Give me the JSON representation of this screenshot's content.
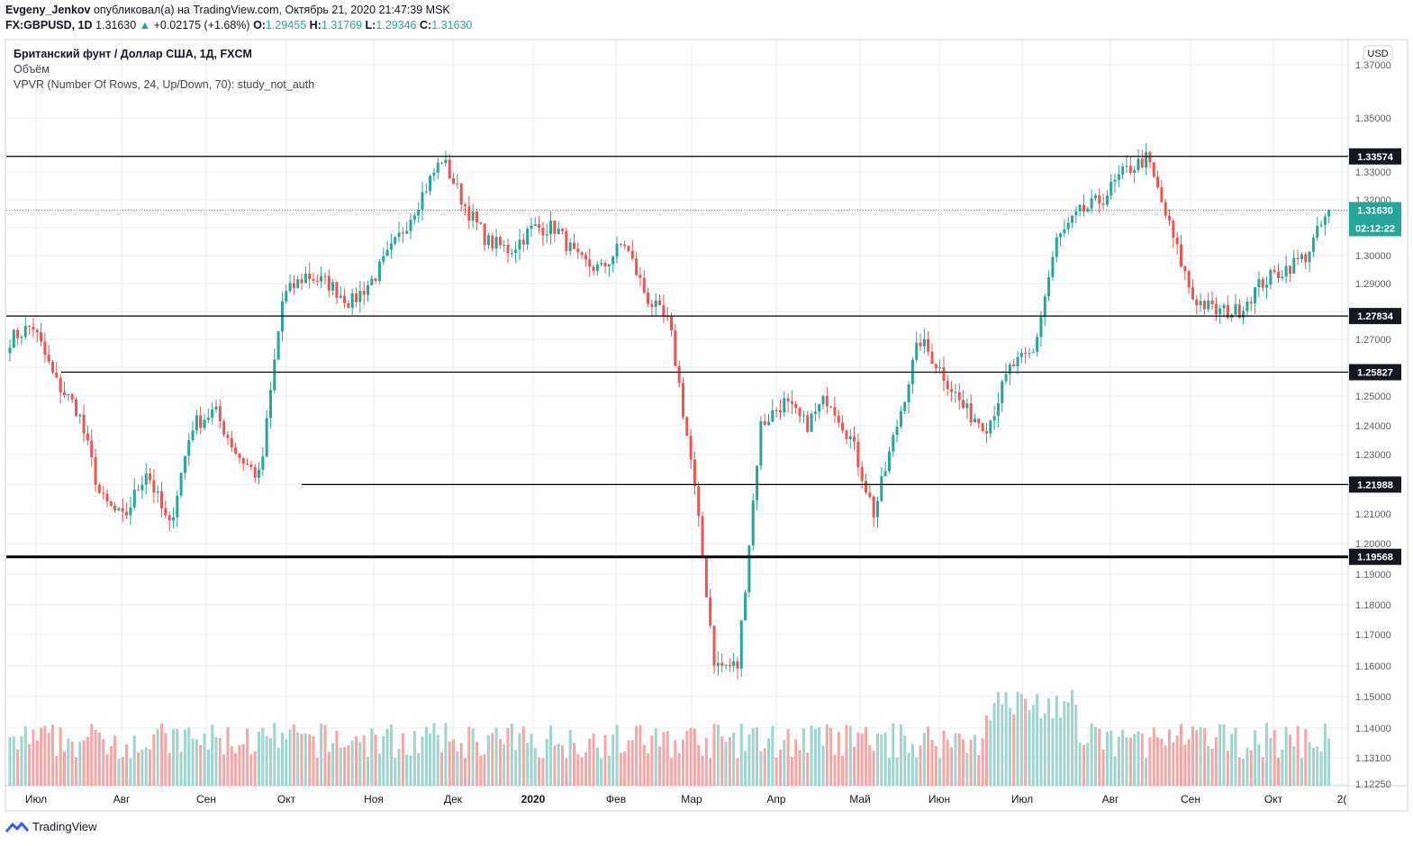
{
  "header": {
    "author": "Evgeny_Jenkov",
    "published_text": "опубликовал(а) на TradingView.com, Октябрь 21, 2020 21:47:39 MSK",
    "symbol_label": "FX:GBPUSD, 1D",
    "last_price": "1.31630",
    "change": "+0.02175 (+1.68%)",
    "o_label": "O:",
    "o_value": "1.29455",
    "h_label": "H:",
    "h_value": "1.31769",
    "l_label": "L:",
    "l_value": "1.29346",
    "c_label": "C:",
    "c_value": "1.31630"
  },
  "legend": {
    "title": "Британский фунт / Доллар США, 1Д, FXCM",
    "volume": "Объём",
    "vpvr": "VPVR (Number Of Rows, 24, Up/Down, 70): study_not_auth"
  },
  "footer": {
    "logo_text": "TradingView"
  },
  "colors": {
    "up": "#26a69a",
    "down": "#ef5350",
    "vol_up": "#9fd4cf",
    "vol_down": "#f5a6a5",
    "grid": "#e6ecf0",
    "last_badge": "#26a69a"
  },
  "chart_data": {
    "type": "candlestick",
    "currency_badge": "USD",
    "ylim": [
      1.1225,
      1.3725
    ],
    "y_ticks": [
      "1.37000",
      "1.35000",
      "1.33000",
      "1.32000",
      "1.31000",
      "1.30000",
      "1.29000",
      "1.28000",
      "1.27000",
      "1.26000",
      "1.25000",
      "1.24000",
      "1.23000",
      "1.22000",
      "1.21000",
      "1.20000",
      "1.19000",
      "1.18000",
      "1.17000",
      "1.16000",
      "1.15000",
      "1.14000",
      "1.13100",
      "1.12250"
    ],
    "x_labels": [
      "Июл",
      "Авг",
      "Сен",
      "Окт",
      "Ноя",
      "Дек",
      "2020",
      "Фев",
      "Мар",
      "Апр",
      "Май",
      "Июн",
      "Июл",
      "Авг",
      "Сен",
      "Окт",
      "2("
    ],
    "levels": [
      {
        "value": 1.33574,
        "label": "1.33574",
        "start": "Июн 2019",
        "bold": false
      },
      {
        "value": 1.27834,
        "label": "1.27834",
        "start": "Июн 2019",
        "bold": false
      },
      {
        "value": 1.25827,
        "label": "1.25827",
        "start": "Июл 2019",
        "bold": false
      },
      {
        "value": 1.21988,
        "label": "1.21988",
        "start": "Окт 2019",
        "bold": false
      },
      {
        "value": 1.19568,
        "label": "1.19568",
        "start": "Июн 2019",
        "bold": true
      }
    ],
    "last_price": {
      "value": 1.3163,
      "label": "1.31630",
      "countdown": "02:12:22"
    },
    "series": [
      {
        "name": "GBPUSD price path (approx. monthly anchors)",
        "values": [
          1.27,
          1.275,
          1.255,
          1.245,
          1.215,
          1.208,
          1.225,
          1.205,
          1.24,
          1.245,
          1.23,
          1.222,
          1.285,
          1.293,
          1.29,
          1.283,
          1.292,
          1.305,
          1.32,
          1.335,
          1.318,
          1.305,
          1.302,
          1.31,
          1.31,
          1.298,
          1.295,
          1.305,
          1.285,
          1.275,
          1.225,
          1.16,
          1.16,
          1.24,
          1.248,
          1.24,
          1.25,
          1.235,
          1.21,
          1.24,
          1.27,
          1.258,
          1.245,
          1.24,
          1.26,
          1.265,
          1.305,
          1.315,
          1.32,
          1.33,
          1.335,
          1.31,
          1.285,
          1.28,
          1.28,
          1.29,
          1.295,
          1.3,
          1.3163
        ]
      }
    ]
  }
}
